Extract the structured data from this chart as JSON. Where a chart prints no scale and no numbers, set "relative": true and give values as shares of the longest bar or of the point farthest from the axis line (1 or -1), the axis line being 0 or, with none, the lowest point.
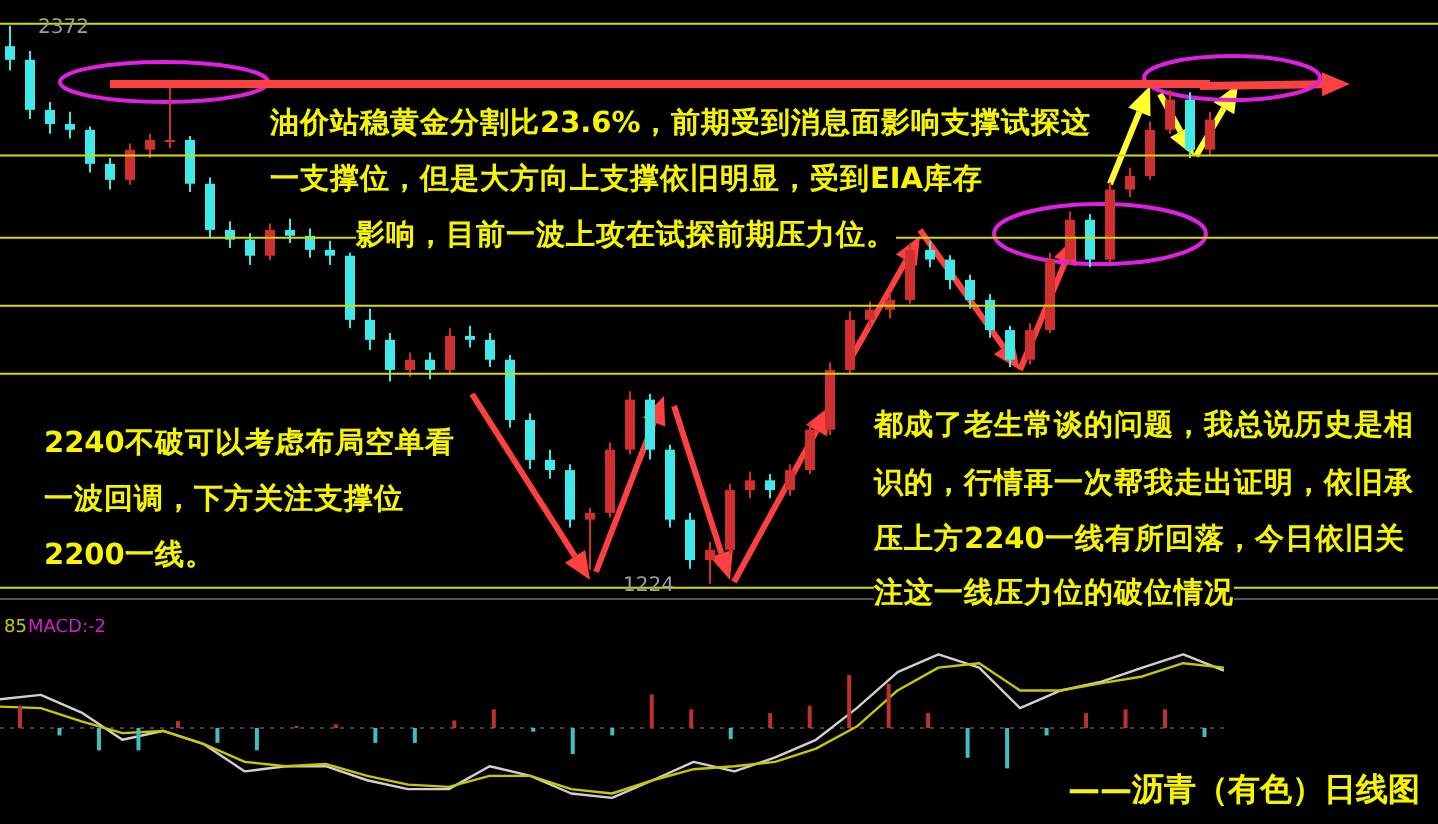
{
  "chart_data": [
    {
      "type": "candlestick",
      "categories": [
        null,
        null,
        null,
        null,
        null,
        null,
        null,
        null,
        null,
        null,
        null,
        null,
        null,
        null,
        null,
        null,
        null,
        null,
        null,
        null,
        null,
        null,
        null,
        null,
        null,
        null,
        null,
        null,
        null,
        null,
        null,
        null,
        null,
        null,
        null,
        null,
        null,
        null,
        null,
        null,
        null,
        null,
        null,
        null,
        null,
        null,
        null,
        null,
        null,
        null,
        null,
        null,
        null,
        null,
        null,
        null,
        null,
        null,
        null,
        null,
        null
      ],
      "ohlc": [
        [
          2330,
          2372,
          2280,
          2302
        ],
        [
          2302,
          2320,
          2180,
          2199
        ],
        [
          2199,
          2215,
          2150,
          2170
        ],
        [
          2170,
          2195,
          2140,
          2158
        ],
        [
          2158,
          2165,
          2070,
          2088
        ],
        [
          2088,
          2100,
          2035,
          2055
        ],
        [
          2055,
          2130,
          2045,
          2117
        ],
        [
          2117,
          2150,
          2100,
          2137
        ],
        [
          2137,
          2249,
          2120,
          2137
        ],
        [
          2137,
          2145,
          2030,
          2047
        ],
        [
          2047,
          2060,
          1935,
          1952
        ],
        [
          1952,
          1970,
          1915,
          1932
        ],
        [
          1932,
          1945,
          1880,
          1899
        ],
        [
          1899,
          1965,
          1890,
          1952
        ],
        [
          1952,
          1975,
          1925,
          1940
        ],
        [
          1940,
          1955,
          1895,
          1911
        ],
        [
          1911,
          1930,
          1880,
          1899
        ],
        [
          1899,
          1905,
          1750,
          1767
        ],
        [
          1767,
          1790,
          1705,
          1726
        ],
        [
          1726,
          1740,
          1640,
          1664
        ],
        [
          1664,
          1700,
          1650,
          1685
        ],
        [
          1685,
          1700,
          1645,
          1664
        ],
        [
          1664,
          1750,
          1655,
          1734
        ],
        [
          1734,
          1755,
          1710,
          1726
        ],
        [
          1726,
          1740,
          1670,
          1685
        ],
        [
          1685,
          1695,
          1545,
          1561
        ],
        [
          1561,
          1575,
          1460,
          1479
        ],
        [
          1479,
          1500,
          1440,
          1458
        ],
        [
          1458,
          1470,
          1340,
          1356
        ],
        [
          1356,
          1380,
          1253,
          1370
        ],
        [
          1370,
          1515,
          1360,
          1500
        ],
        [
          1500,
          1620,
          1490,
          1603
        ],
        [
          1603,
          1615,
          1480,
          1500
        ],
        [
          1500,
          1510,
          1340,
          1356
        ],
        [
          1356,
          1370,
          1255,
          1273
        ],
        [
          1273,
          1310,
          1224,
          1294
        ],
        [
          1294,
          1430,
          1285,
          1417
        ],
        [
          1417,
          1455,
          1400,
          1437
        ],
        [
          1437,
          1450,
          1400,
          1417
        ],
        [
          1417,
          1470,
          1405,
          1458
        ],
        [
          1458,
          1555,
          1450,
          1541
        ],
        [
          1541,
          1680,
          1530,
          1664
        ],
        [
          1664,
          1785,
          1655,
          1767
        ],
        [
          1767,
          1805,
          1750,
          1788
        ],
        [
          1788,
          1825,
          1770,
          1808
        ],
        [
          1808,
          1925,
          1800,
          1911
        ],
        [
          1911,
          1930,
          1875,
          1891
        ],
        [
          1891,
          1900,
          1830,
          1849
        ],
        [
          1849,
          1860,
          1790,
          1808
        ],
        [
          1808,
          1820,
          1730,
          1746
        ],
        [
          1746,
          1755,
          1670,
          1685
        ],
        [
          1685,
          1760,
          1675,
          1746
        ],
        [
          1746,
          1905,
          1740,
          1891
        ],
        [
          1891,
          1990,
          1880,
          1973
        ],
        [
          1973,
          1985,
          1875,
          1891
        ],
        [
          1891,
          2050,
          1885,
          2035
        ],
        [
          2035,
          2080,
          2020,
          2063
        ],
        [
          2063,
          2175,
          2055,
          2158
        ],
        [
          2158,
          2240,
          2150,
          2220
        ],
        [
          2220,
          2235,
          2100,
          2117
        ],
        [
          2117,
          2195,
          2105,
          2179
        ]
      ],
      "colors": [
        "#40e8e8",
        "#40e8e8",
        "#40e8e8",
        "#40e8e8",
        "#40e8e8",
        "#40e8e8",
        "#d03030",
        "#d03030",
        "#d03030",
        "#40e8e8",
        "#40e8e8",
        "#40e8e8",
        "#40e8e8",
        "#d03030",
        "#40e8e8",
        "#40e8e8",
        "#40e8e8",
        "#40e8e8",
        "#40e8e8",
        "#40e8e8",
        "#d03030",
        "#40e8e8",
        "#d03030",
        "#40e8e8",
        "#40e8e8",
        "#40e8e8",
        "#40e8e8",
        "#40e8e8",
        "#40e8e8",
        "#d03030",
        "#d03030",
        "#d03030",
        "#40e8e8",
        "#40e8e8",
        "#40e8e8",
        "#d03030",
        "#d03030",
        "#d03030",
        "#40e8e8",
        "#d03030",
        "#d03030",
        "#d03030",
        "#d03030",
        "#d03030",
        "#d03030",
        "#d03030",
        "#40e8e8",
        "#40e8e8",
        "#40e8e8",
        "#40e8e8",
        "#40e8e8",
        "#d03030",
        "#d03030",
        "#d03030",
        "#40e8e8",
        "#d03030",
        "#d03030",
        "#d03030",
        "#d03030",
        "#40e8e8",
        "#d03030"
      ],
      "ylim": [
        1199,
        2425
      ],
      "tick_labels": false,
      "ref_lines": [
        {
          "axis": "y",
          "value": 2376,
          "color": "#d8d800"
        },
        {
          "axis": "y",
          "value": 2105,
          "color": "#d8d800"
        },
        {
          "axis": "y",
          "value": 1936,
          "color": "#d8d800"
        },
        {
          "axis": "y",
          "value": 1796,
          "color": "#d8d800"
        },
        {
          "axis": "y",
          "value": 1656,
          "color": "#d8d800"
        },
        {
          "axis": "y",
          "value": 1216,
          "color": "#d8d800"
        },
        {
          "axis": "y",
          "value": 2252,
          "color": "#ff4040"
        }
      ],
      "annotations": [
        "油价站稳黄金分割比23.6%，前期受到消息面影响支撑试探这",
        "一支撑位，但是大方向上支撑依旧明显，受到EIA库存",
        "影响，目前一波上攻在试探前期压力位。",
        "2240不破可以考虑布局空单看",
        "一波回调，下方关注支撑位",
        "2200一线。",
        "都成了老生常谈的问题，我总说历史是相",
        "识的，行情再一次帮我走出证明，依旧承",
        "压上方2240一线有所回落，今日依旧关",
        "注这一线压力位的破位情况",
        {
          "text": "2372",
          "y": 2372
        },
        {
          "text": "1224",
          "y": 1224
        }
      ]
    },
    {
      "type": "line",
      "relative": true,
      "tick_labels": false,
      "ref_lines": [
        {
          "axis": "y",
          "value": 0,
          "color": "#444444",
          "line_style": "dashed"
        }
      ],
      "categories": [
        null,
        null,
        null,
        null,
        null,
        null,
        null,
        null,
        null,
        null,
        null,
        null,
        null,
        null,
        null,
        null,
        null,
        null,
        null,
        null,
        null,
        null,
        null,
        null,
        null,
        null,
        null,
        null,
        null,
        null,
        null
      ],
      "series": [
        {
          "color": "#d0d0d0",
          "values": [
            0.39,
            0.45,
            0.21,
            -0.16,
            -0.04,
            -0.22,
            -0.59,
            -0.52,
            -0.52,
            -0.71,
            -0.83,
            -0.83,
            -0.52,
            -0.65,
            -0.89,
            -0.95,
            -0.71,
            -0.46,
            -0.59,
            -0.4,
            -0.16,
            0.27,
            0.76,
            1,
            0.82,
            0.27,
            0.51,
            0.63,
            0.82,
            1,
            0.78
          ]
        },
        {
          "color": "#c8c800",
          "values": [
            0.29,
            0.27,
            0.09,
            -0.07,
            -0.04,
            -0.22,
            -0.46,
            -0.52,
            -0.49,
            -0.65,
            -0.77,
            -0.8,
            -0.65,
            -0.65,
            -0.83,
            -0.89,
            -0.71,
            -0.56,
            -0.52,
            -0.46,
            -0.28,
            0.02,
            0.51,
            0.82,
            0.88,
            0.51,
            0.51,
            0.61,
            0.7,
            0.88,
            0.82
          ]
        }
      ],
      "annotations": [
        "85",
        "MACD:-2",
        "——沥青（有色）日线图"
      ]
    },
    {
      "type": "bar",
      "relative": true,
      "tick_labels": false,
      "categories": [
        null,
        null,
        null,
        null,
        null,
        null,
        null,
        null,
        null,
        null,
        null,
        null,
        null,
        null,
        null,
        null,
        null,
        null,
        null,
        null,
        null,
        null,
        null,
        null,
        null,
        null,
        null,
        null,
        null,
        null,
        null
      ],
      "colors": [
        "#c03030",
        "#3fbfbf",
        "#3fbfbf",
        "#3fbfbf",
        "#c03030",
        "#3fbfbf",
        "#3fbfbf",
        "#c03030",
        "#c03030",
        "#3fbfbf",
        "#3fbfbf",
        "#c03030",
        "#c03030",
        "#3fbfbf",
        "#3fbfbf",
        "#3fbfbf",
        "#c03030",
        "#c03030",
        "#3fbfbf",
        "#c03030",
        "#c03030",
        "#c03030",
        "#c03030",
        "#c03030",
        "#3fbfbf",
        "#3fbfbf",
        "#3fbfbf",
        "#c03030",
        "#c03030",
        "#c03030",
        "#3fbfbf"
      ],
      "values": [
        0.42,
        -0.14,
        -0.42,
        -0.42,
        0.13,
        -0.28,
        -0.42,
        0.04,
        0.07,
        -0.28,
        -0.28,
        0.14,
        0.35,
        -0.07,
        -0.49,
        -0.14,
        0.63,
        0.35,
        -0.21,
        0.28,
        0.42,
        1,
        0.83,
        0.28,
        -0.56,
        -0.76,
        -0.14,
        0.28,
        0.35,
        0.35,
        -0.17
      ]
    }
  ]
}
